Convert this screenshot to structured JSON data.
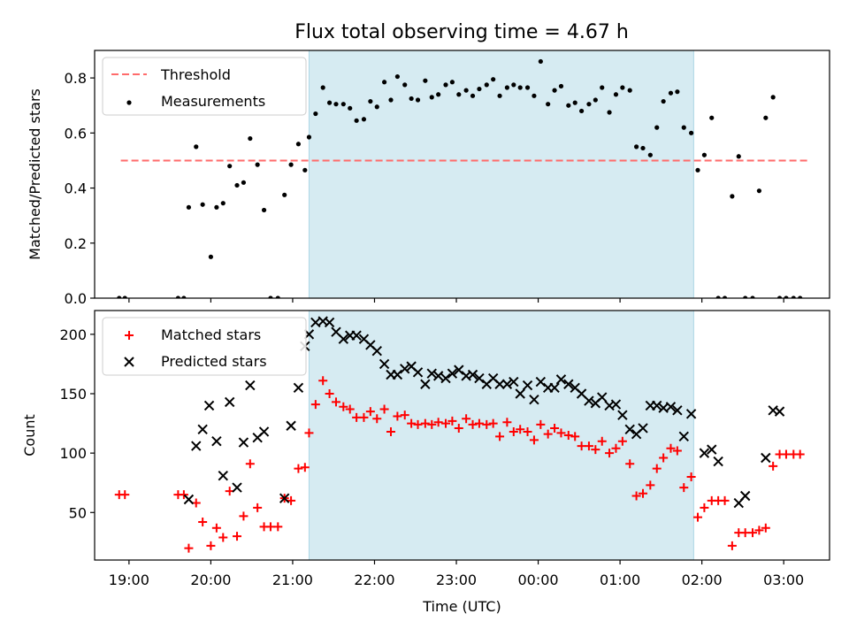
{
  "title": "Flux total observing time = 4.67 h",
  "chart_data": [
    {
      "type": "scatter",
      "panel": "top",
      "title": "Flux total observing time = 4.67 h",
      "xlabel": "",
      "ylabel": "Matched/Predicted stars",
      "x_unit": "time (UTC), decimal hours continuing past midnight",
      "xlim": [
        18.58,
        27.56
      ],
      "ylim": [
        0.0,
        0.9
      ],
      "yticks": [
        "0.0",
        "0.2",
        "0.4",
        "0.6",
        "0.8"
      ],
      "grid": false,
      "legend_position": "top-left",
      "shaded_interval": {
        "x": [
          21.2,
          25.9
        ],
        "color": "#add8e6"
      },
      "series": [
        {
          "name": "Threshold",
          "kind": "dashed-line",
          "color": "#ff6b6b",
          "x": [
            18.9,
            27.3
          ],
          "y": [
            0.5,
            0.5
          ]
        },
        {
          "name": "Measurements",
          "kind": "points",
          "color": "#000000",
          "x": [
            18.88,
            18.95,
            19.6,
            19.67,
            19.73,
            19.82,
            19.9,
            20.0,
            20.07,
            20.15,
            20.23,
            20.32,
            20.4,
            20.48,
            20.57,
            20.65,
            20.73,
            20.82,
            20.9,
            20.98,
            21.07,
            21.15,
            21.2,
            21.28,
            21.37,
            21.45,
            21.53,
            21.62,
            21.7,
            21.78,
            21.87,
            21.95,
            22.03,
            22.12,
            22.2,
            22.28,
            22.37,
            22.45,
            22.53,
            22.62,
            22.7,
            22.78,
            22.87,
            22.95,
            23.03,
            23.12,
            23.2,
            23.28,
            23.37,
            23.45,
            23.53,
            23.62,
            23.7,
            23.78,
            23.87,
            23.95,
            24.03,
            24.12,
            24.2,
            24.28,
            24.37,
            24.45,
            24.53,
            24.62,
            24.7,
            24.78,
            24.87,
            24.95,
            25.03,
            25.12,
            25.2,
            25.28,
            25.37,
            25.45,
            25.53,
            25.62,
            25.7,
            25.78,
            25.87,
            25.95,
            26.03,
            26.12,
            26.2,
            26.28,
            26.37,
            26.45,
            26.53,
            26.62,
            26.7,
            26.78,
            26.87,
            26.95,
            27.03,
            27.12,
            27.2
          ],
          "y": [
            0.0,
            0.0,
            0.0,
            0.0,
            0.33,
            0.55,
            0.34,
            0.15,
            0.33,
            0.345,
            0.48,
            0.41,
            0.42,
            0.58,
            0.485,
            0.32,
            0.0,
            0.0,
            0.375,
            0.485,
            0.56,
            0.465,
            0.585,
            0.67,
            0.765,
            0.71,
            0.705,
            0.705,
            0.69,
            0.645,
            0.65,
            0.715,
            0.695,
            0.785,
            0.72,
            0.805,
            0.775,
            0.725,
            0.72,
            0.79,
            0.73,
            0.74,
            0.775,
            0.785,
            0.74,
            0.755,
            0.735,
            0.76,
            0.775,
            0.795,
            0.735,
            0.765,
            0.775,
            0.765,
            0.765,
            0.735,
            0.86,
            0.705,
            0.755,
            0.77,
            0.7,
            0.71,
            0.68,
            0.705,
            0.72,
            0.765,
            0.675,
            0.74,
            0.765,
            0.755,
            0.55,
            0.545,
            0.52,
            0.62,
            0.715,
            0.745,
            0.75,
            0.62,
            0.6,
            0.465,
            0.52,
            0.655,
            0.0,
            0.0,
            0.37,
            0.515,
            0.0,
            0.0,
            0.39,
            0.655,
            0.73,
            0.0,
            0.0,
            0.0,
            0.0
          ]
        }
      ]
    },
    {
      "type": "scatter",
      "panel": "bottom",
      "xlabel": "Time (UTC)",
      "ylabel": "Count",
      "x_unit": "time (UTC), decimal hours continuing past midnight",
      "xlim": [
        18.58,
        27.56
      ],
      "ylim": [
        10,
        220
      ],
      "yticks": [
        "50",
        "100",
        "150",
        "200"
      ],
      "xticks": [
        "19:00",
        "20:00",
        "21:00",
        "22:00",
        "23:00",
        "00:00",
        "01:00",
        "02:00",
        "03:00"
      ],
      "grid": false,
      "legend_position": "top-left",
      "shaded_interval": {
        "x": [
          21.2,
          25.9
        ],
        "color": "#add8e6"
      },
      "series": [
        {
          "name": "Matched stars",
          "marker": "plus",
          "color": "#ff0000",
          "x": [
            18.88,
            18.95,
            19.6,
            19.67,
            19.73,
            19.82,
            19.9,
            20.0,
            20.07,
            20.15,
            20.23,
            20.32,
            20.4,
            20.48,
            20.57,
            20.65,
            20.73,
            20.82,
            20.9,
            20.98,
            21.07,
            21.15,
            21.2,
            21.28,
            21.37,
            21.45,
            21.53,
            21.62,
            21.7,
            21.78,
            21.87,
            21.95,
            22.03,
            22.12,
            22.2,
            22.28,
            22.37,
            22.45,
            22.53,
            22.62,
            22.7,
            22.78,
            22.87,
            22.95,
            23.03,
            23.12,
            23.2,
            23.28,
            23.37,
            23.45,
            23.53,
            23.62,
            23.7,
            23.78,
            23.87,
            23.95,
            24.03,
            24.12,
            24.2,
            24.28,
            24.37,
            24.45,
            24.53,
            24.62,
            24.7,
            24.78,
            24.87,
            24.95,
            25.03,
            25.12,
            25.2,
            25.28,
            25.37,
            25.45,
            25.53,
            25.62,
            25.7,
            25.78,
            25.87,
            25.95,
            26.03,
            26.12,
            26.2,
            26.28,
            26.37,
            26.45,
            26.53,
            26.62,
            26.7,
            26.78,
            26.87,
            26.95,
            27.03,
            27.12,
            27.2
          ],
          "y": [
            65,
            65,
            65,
            65,
            20,
            58,
            42,
            22,
            37,
            29,
            68,
            30,
            47,
            91,
            54,
            38,
            38,
            38,
            62,
            60,
            87,
            88,
            117,
            141,
            161,
            150,
            143,
            139,
            137,
            130,
            130,
            135,
            129,
            137,
            118,
            131,
            132,
            125,
            124,
            125,
            124,
            126,
            125,
            127,
            121,
            129,
            124,
            125,
            124,
            125,
            114,
            126,
            118,
            120,
            118,
            111,
            124,
            116,
            121,
            117,
            115,
            114,
            106,
            106,
            103,
            110,
            100,
            104,
            110,
            91,
            64,
            66,
            73,
            87,
            96,
            104,
            102,
            71,
            80,
            46,
            54,
            60,
            60,
            60,
            22,
            33,
            33,
            33,
            35,
            37,
            89,
            99,
            99,
            99,
            99
          ]
        },
        {
          "name": "Predicted stars",
          "marker": "x",
          "color": "#000000",
          "x": [
            19.73,
            19.82,
            19.9,
            19.98,
            20.07,
            20.15,
            20.23,
            20.32,
            20.4,
            20.48,
            20.57,
            20.65,
            20.9,
            20.98,
            21.07,
            21.15,
            21.2,
            21.28,
            21.37,
            21.45,
            21.53,
            21.62,
            21.7,
            21.78,
            21.87,
            21.95,
            22.03,
            22.12,
            22.2,
            22.28,
            22.37,
            22.45,
            22.53,
            22.62,
            22.7,
            22.78,
            22.87,
            22.95,
            23.03,
            23.12,
            23.2,
            23.28,
            23.37,
            23.45,
            23.53,
            23.62,
            23.7,
            23.78,
            23.87,
            23.95,
            24.03,
            24.12,
            24.2,
            24.28,
            24.37,
            24.45,
            24.53,
            24.62,
            24.7,
            24.78,
            24.87,
            24.95,
            25.03,
            25.12,
            25.2,
            25.28,
            25.37,
            25.45,
            25.53,
            25.62,
            25.7,
            25.78,
            25.87,
            26.03,
            26.12,
            26.2,
            26.45,
            26.53,
            26.78,
            26.87,
            26.95
          ],
          "y": [
            61,
            106,
            120,
            140,
            110,
            81,
            143,
            71,
            109,
            157,
            113,
            118,
            62,
            123,
            155,
            190,
            200,
            210,
            211,
            210,
            202,
            196,
            199,
            199,
            196,
            191,
            186,
            175,
            166,
            166,
            171,
            173,
            168,
            158,
            167,
            165,
            163,
            167,
            170,
            165,
            166,
            163,
            158,
            163,
            158,
            158,
            160,
            150,
            157,
            145,
            160,
            155,
            155,
            162,
            158,
            155,
            150,
            144,
            142,
            147,
            140,
            141,
            132,
            120,
            116,
            121,
            140,
            140,
            138,
            139,
            136,
            114,
            133,
            100,
            103,
            93,
            58,
            64,
            96,
            136,
            135
          ]
        }
      ]
    }
  ]
}
